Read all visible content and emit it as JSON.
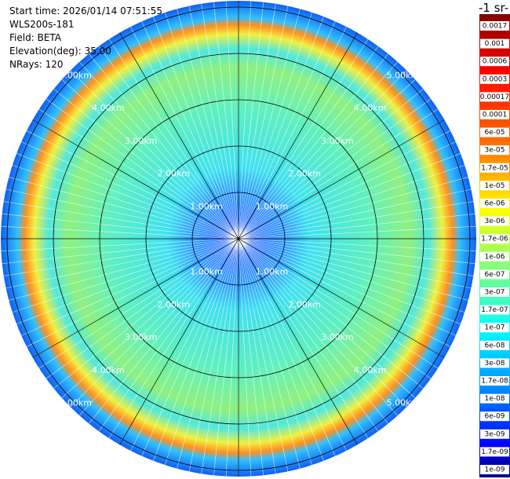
{
  "header": {
    "lines": [
      "Start time: 2026/01/14 07:51:55",
      "WLS200s-181",
      "Field: BETA",
      "Elevation(deg): 35.00",
      "NRays: 120"
    ]
  },
  "unit_title": "-1 sr-",
  "range_labels": [
    "1.00km",
    "2.00km",
    "3.00km",
    "4.00km",
    "5.00km"
  ],
  "colorbar": {
    "labels": [
      "0.0017",
      "0.001",
      "0.0006",
      "0.0003",
      "0.00017",
      "0.0001",
      "6e-05",
      "3e-05",
      "1.7e-05",
      "1e-05",
      "6e-06",
      "3e-06",
      "1.7e-06",
      "1e-06",
      "6e-07",
      "3e-07",
      "1.7e-07",
      "1e-07",
      "6e-08",
      "3e-08",
      "1.7e-08",
      "1e-08",
      "6e-09",
      "3e-09",
      "1.7e-09",
      "1e-09"
    ]
  }
}
